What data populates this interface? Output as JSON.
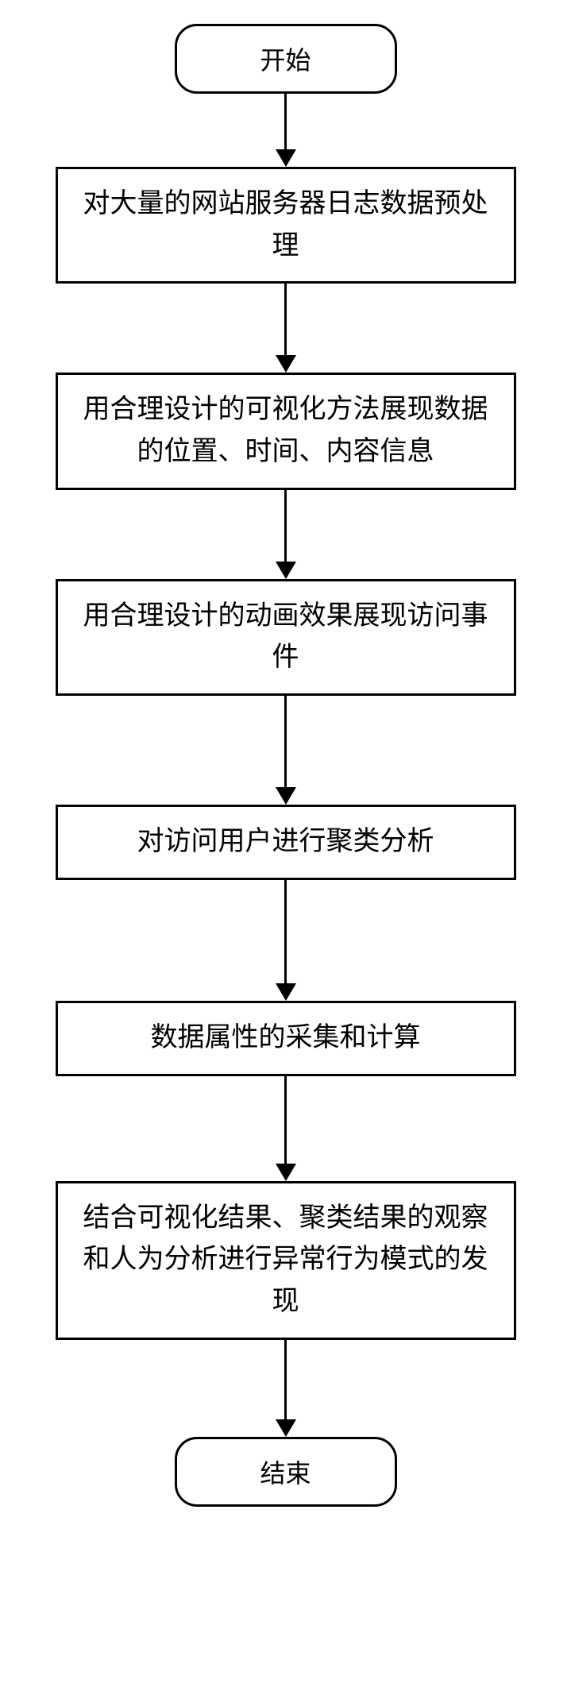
{
  "flowchart": {
    "type": "flowchart",
    "background_color": "#ffffff",
    "border_color": "#000000",
    "border_width": 3,
    "text_color": "#000000",
    "terminal_fontsize": 32,
    "process_fontsize": 34,
    "terminal_width": 280,
    "process_width": 580,
    "terminal_radius": 28,
    "arrow_line_width": 3,
    "arrow_head_width": 26,
    "arrow_head_height": 22,
    "nodes": [
      {
        "id": "start",
        "kind": "terminal",
        "label": "开始"
      },
      {
        "id": "n1",
        "kind": "process",
        "label": "对大量的网站服务器日志数据预处理"
      },
      {
        "id": "n2",
        "kind": "process",
        "label": "用合理设计的可视化方法展现数据的位置、时间、内容信息"
      },
      {
        "id": "n3",
        "kind": "process",
        "label": "用合理设计的动画效果展现访问事件"
      },
      {
        "id": "n4",
        "kind": "process",
        "label": "对访问用户进行聚类分析"
      },
      {
        "id": "n5",
        "kind": "process",
        "label": "数据属性的采集和计算"
      },
      {
        "id": "n6",
        "kind": "process",
        "label": "结合可视化结果、聚类结果的观察和人为分析进行异常行为模式的发现"
      },
      {
        "id": "end",
        "kind": "terminal",
        "label": "结束"
      }
    ],
    "edges": [
      {
        "from": "start",
        "to": "n1",
        "length": 70
      },
      {
        "from": "n1",
        "to": "n2",
        "length": 90
      },
      {
        "from": "n2",
        "to": "n3",
        "length": 90
      },
      {
        "from": "n3",
        "to": "n4",
        "length": 115
      },
      {
        "from": "n4",
        "to": "n5",
        "length": 130
      },
      {
        "from": "n5",
        "to": "n6",
        "length": 110
      },
      {
        "from": "n6",
        "to": "end",
        "length": 100
      }
    ]
  }
}
